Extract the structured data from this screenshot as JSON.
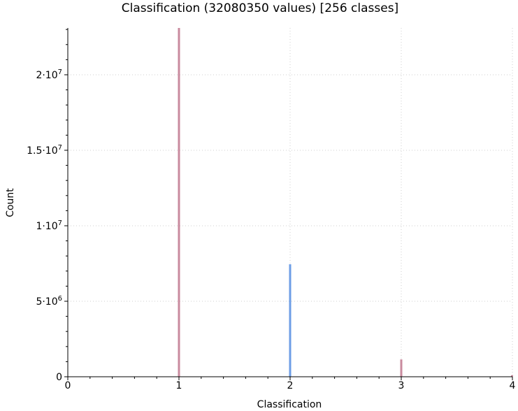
{
  "chart_data": {
    "type": "bar",
    "title": "Classification (32080350 values)  [256 classes]",
    "xlabel": "Classification",
    "ylabel": "Count",
    "xlim": [
      0,
      4
    ],
    "ylim": [
      0,
      23100000
    ],
    "grid": true,
    "x_ticks": [
      {
        "value": 0,
        "label": "0"
      },
      {
        "value": 1,
        "label": "1"
      },
      {
        "value": 2,
        "label": "2"
      },
      {
        "value": 3,
        "label": "3"
      },
      {
        "value": 4,
        "label": "4"
      }
    ],
    "y_ticks": [
      {
        "value": 0,
        "mantissa": "0",
        "exp": ""
      },
      {
        "value": 5000000,
        "mantissa": "5·10",
        "exp": "6"
      },
      {
        "value": 10000000,
        "mantissa": "1·10",
        "exp": "7"
      },
      {
        "value": 15000000,
        "mantissa": "1.5·10",
        "exp": "7"
      },
      {
        "value": 20000000,
        "mantissa": "2·10",
        "exp": "7"
      }
    ],
    "bars": [
      {
        "x": 1,
        "value": 23100000,
        "color": "#c98a9e"
      },
      {
        "x": 2,
        "value": 7450000,
        "color": "#6d9ee6"
      },
      {
        "x": 3,
        "value": 1150000,
        "color": "#c98a9e"
      },
      {
        "x": 4,
        "value": 100000,
        "color": "#c98a9e"
      }
    ]
  }
}
